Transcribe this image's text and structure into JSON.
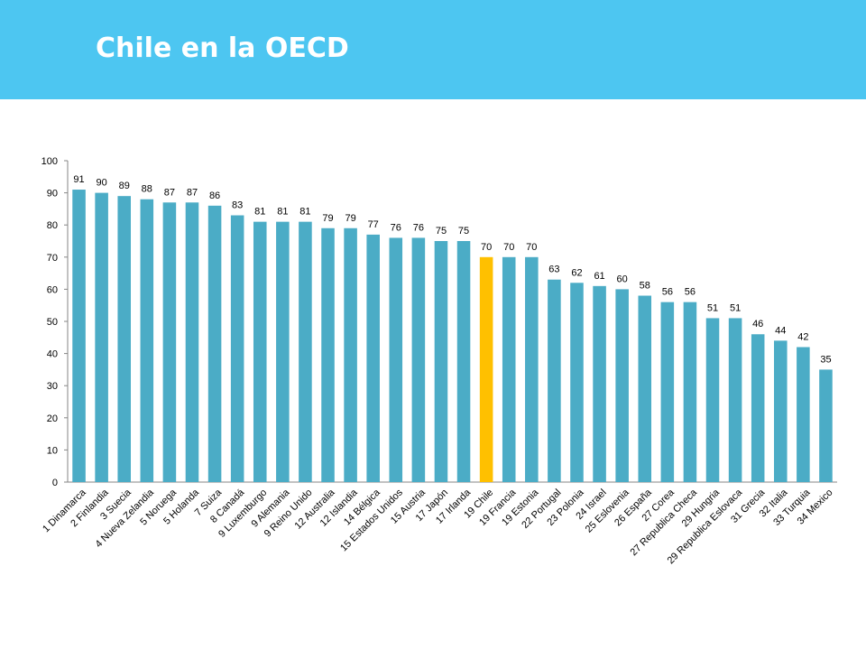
{
  "slide": {
    "title": "Chile en la OECD",
    "header_color": "#4dc6f1"
  },
  "chart_data": {
    "type": "bar",
    "title": "",
    "xlabel": "",
    "ylabel": "",
    "ylim": [
      0,
      100
    ],
    "yticks": [
      0,
      10,
      20,
      30,
      40,
      50,
      60,
      70,
      80,
      90,
      100
    ],
    "grid": false,
    "legend": "none",
    "bar_color": "#4bacc6",
    "highlight_color": "#ffc000",
    "highlight_category": "19 Chile",
    "categories": [
      "1 Dinamarca",
      "2 Finlandia",
      "3 Suecia",
      "4 Nueva Zelandia",
      "5 Noruega",
      "5 Holanda",
      "7 Suiza",
      "8 Canadá",
      "9 Luxemburgo",
      "9 Alemania",
      "9 Reino Unido",
      "12 Australia",
      "12 Islandia",
      "14 Bélgica",
      "15 Estados Unidos",
      "15 Austria",
      "17 Japón",
      "17 Irlanda",
      "19 Chile",
      "19 Francia",
      "19 Estonia",
      "22 Portugal",
      "23 Polonia",
      "24 Israel",
      "25 Eslovenia",
      "26 España",
      "27 Corea",
      "27 Republica Checa",
      "29 Hungria",
      "29 Republica Eslovaca",
      "31 Grecia",
      "32 Italia",
      "33 Turquia",
      "34 Mexico"
    ],
    "values": [
      91,
      90,
      89,
      88,
      87,
      87,
      86,
      83,
      81,
      81,
      81,
      79,
      79,
      77,
      76,
      76,
      75,
      75,
      70,
      70,
      70,
      63,
      62,
      61,
      60,
      58,
      56,
      56,
      51,
      51,
      46,
      44,
      42,
      35
    ]
  }
}
